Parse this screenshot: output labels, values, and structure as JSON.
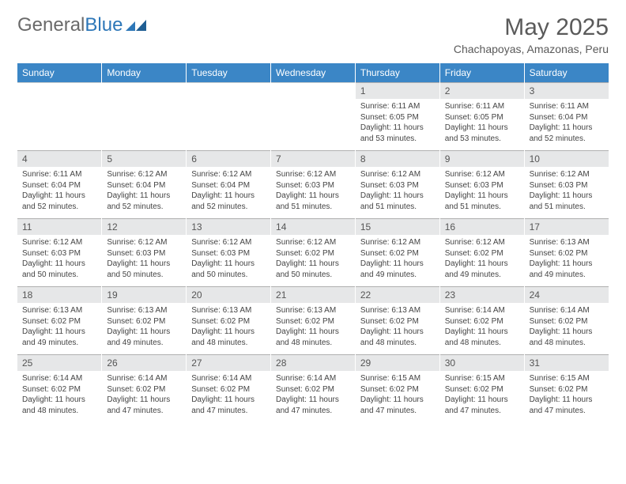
{
  "logo": {
    "text1": "General",
    "text2": "Blue"
  },
  "title": "May 2025",
  "subtitle": "Chachapoyas, Amazonas, Peru",
  "colors": {
    "header_bg": "#3b86c6",
    "header_text": "#ffffff",
    "numrow_bg": "#e6e7e8",
    "text": "#444444",
    "logo_gray": "#6a6a6a",
    "logo_blue": "#2d77b8"
  },
  "day_names": [
    "Sunday",
    "Monday",
    "Tuesday",
    "Wednesday",
    "Thursday",
    "Friday",
    "Saturday"
  ],
  "weeks": [
    {
      "nums": [
        "",
        "",
        "",
        "",
        "1",
        "2",
        "3"
      ],
      "cells": [
        null,
        null,
        null,
        null,
        {
          "sunrise": "6:11 AM",
          "sunset": "6:05 PM",
          "daylight": "11 hours and 53 minutes."
        },
        {
          "sunrise": "6:11 AM",
          "sunset": "6:05 PM",
          "daylight": "11 hours and 53 minutes."
        },
        {
          "sunrise": "6:11 AM",
          "sunset": "6:04 PM",
          "daylight": "11 hours and 52 minutes."
        }
      ]
    },
    {
      "nums": [
        "4",
        "5",
        "6",
        "7",
        "8",
        "9",
        "10"
      ],
      "cells": [
        {
          "sunrise": "6:11 AM",
          "sunset": "6:04 PM",
          "daylight": "11 hours and 52 minutes."
        },
        {
          "sunrise": "6:12 AM",
          "sunset": "6:04 PM",
          "daylight": "11 hours and 52 minutes."
        },
        {
          "sunrise": "6:12 AM",
          "sunset": "6:04 PM",
          "daylight": "11 hours and 52 minutes."
        },
        {
          "sunrise": "6:12 AM",
          "sunset": "6:03 PM",
          "daylight": "11 hours and 51 minutes."
        },
        {
          "sunrise": "6:12 AM",
          "sunset": "6:03 PM",
          "daylight": "11 hours and 51 minutes."
        },
        {
          "sunrise": "6:12 AM",
          "sunset": "6:03 PM",
          "daylight": "11 hours and 51 minutes."
        },
        {
          "sunrise": "6:12 AM",
          "sunset": "6:03 PM",
          "daylight": "11 hours and 51 minutes."
        }
      ]
    },
    {
      "nums": [
        "11",
        "12",
        "13",
        "14",
        "15",
        "16",
        "17"
      ],
      "cells": [
        {
          "sunrise": "6:12 AM",
          "sunset": "6:03 PM",
          "daylight": "11 hours and 50 minutes."
        },
        {
          "sunrise": "6:12 AM",
          "sunset": "6:03 PM",
          "daylight": "11 hours and 50 minutes."
        },
        {
          "sunrise": "6:12 AM",
          "sunset": "6:03 PM",
          "daylight": "11 hours and 50 minutes."
        },
        {
          "sunrise": "6:12 AM",
          "sunset": "6:02 PM",
          "daylight": "11 hours and 50 minutes."
        },
        {
          "sunrise": "6:12 AM",
          "sunset": "6:02 PM",
          "daylight": "11 hours and 49 minutes."
        },
        {
          "sunrise": "6:12 AM",
          "sunset": "6:02 PM",
          "daylight": "11 hours and 49 minutes."
        },
        {
          "sunrise": "6:13 AM",
          "sunset": "6:02 PM",
          "daylight": "11 hours and 49 minutes."
        }
      ]
    },
    {
      "nums": [
        "18",
        "19",
        "20",
        "21",
        "22",
        "23",
        "24"
      ],
      "cells": [
        {
          "sunrise": "6:13 AM",
          "sunset": "6:02 PM",
          "daylight": "11 hours and 49 minutes."
        },
        {
          "sunrise": "6:13 AM",
          "sunset": "6:02 PM",
          "daylight": "11 hours and 49 minutes."
        },
        {
          "sunrise": "6:13 AM",
          "sunset": "6:02 PM",
          "daylight": "11 hours and 48 minutes."
        },
        {
          "sunrise": "6:13 AM",
          "sunset": "6:02 PM",
          "daylight": "11 hours and 48 minutes."
        },
        {
          "sunrise": "6:13 AM",
          "sunset": "6:02 PM",
          "daylight": "11 hours and 48 minutes."
        },
        {
          "sunrise": "6:14 AM",
          "sunset": "6:02 PM",
          "daylight": "11 hours and 48 minutes."
        },
        {
          "sunrise": "6:14 AM",
          "sunset": "6:02 PM",
          "daylight": "11 hours and 48 minutes."
        }
      ]
    },
    {
      "nums": [
        "25",
        "26",
        "27",
        "28",
        "29",
        "30",
        "31"
      ],
      "cells": [
        {
          "sunrise": "6:14 AM",
          "sunset": "6:02 PM",
          "daylight": "11 hours and 48 minutes."
        },
        {
          "sunrise": "6:14 AM",
          "sunset": "6:02 PM",
          "daylight": "11 hours and 47 minutes."
        },
        {
          "sunrise": "6:14 AM",
          "sunset": "6:02 PM",
          "daylight": "11 hours and 47 minutes."
        },
        {
          "sunrise": "6:14 AM",
          "sunset": "6:02 PM",
          "daylight": "11 hours and 47 minutes."
        },
        {
          "sunrise": "6:15 AM",
          "sunset": "6:02 PM",
          "daylight": "11 hours and 47 minutes."
        },
        {
          "sunrise": "6:15 AM",
          "sunset": "6:02 PM",
          "daylight": "11 hours and 47 minutes."
        },
        {
          "sunrise": "6:15 AM",
          "sunset": "6:02 PM",
          "daylight": "11 hours and 47 minutes."
        }
      ]
    }
  ],
  "labels": {
    "sunrise_prefix": "Sunrise: ",
    "sunset_prefix": "Sunset: ",
    "daylight_prefix": "Daylight: "
  }
}
